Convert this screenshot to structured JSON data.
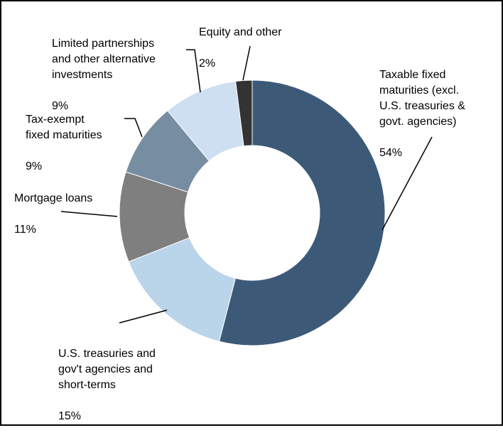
{
  "chart_data": {
    "type": "pie",
    "variant": "donut",
    "title": "",
    "start": "12 o'clock",
    "direction": "clockwise",
    "slices": [
      {
        "label": "Taxable fixed\n maturities (excl.\nU.S. treasuries &\ngovt. agencies)",
        "value": 54,
        "value_label": "54%",
        "color": "#3c5a78"
      },
      {
        "label": "U.S. treasuries and\ngov't agencies and\nshort-terms",
        "value": 15,
        "value_label": "15%",
        "color": "#bad4ea"
      },
      {
        "label": "Mortgage loans",
        "value": 11,
        "value_label": "11%",
        "color": "#7f7f7f"
      },
      {
        "label": "Tax-exempt\nfixed maturities",
        "value": 9,
        "value_label": "9%",
        "color": "#778da2"
      },
      {
        "label": "Limited partnerships\nand other alternative\ninvestments",
        "value": 9,
        "value_label": "9%",
        "color": "#cddff0"
      },
      {
        "label": "Equity and other",
        "value": 2,
        "value_label": "2%",
        "color": "#333333"
      }
    ]
  }
}
